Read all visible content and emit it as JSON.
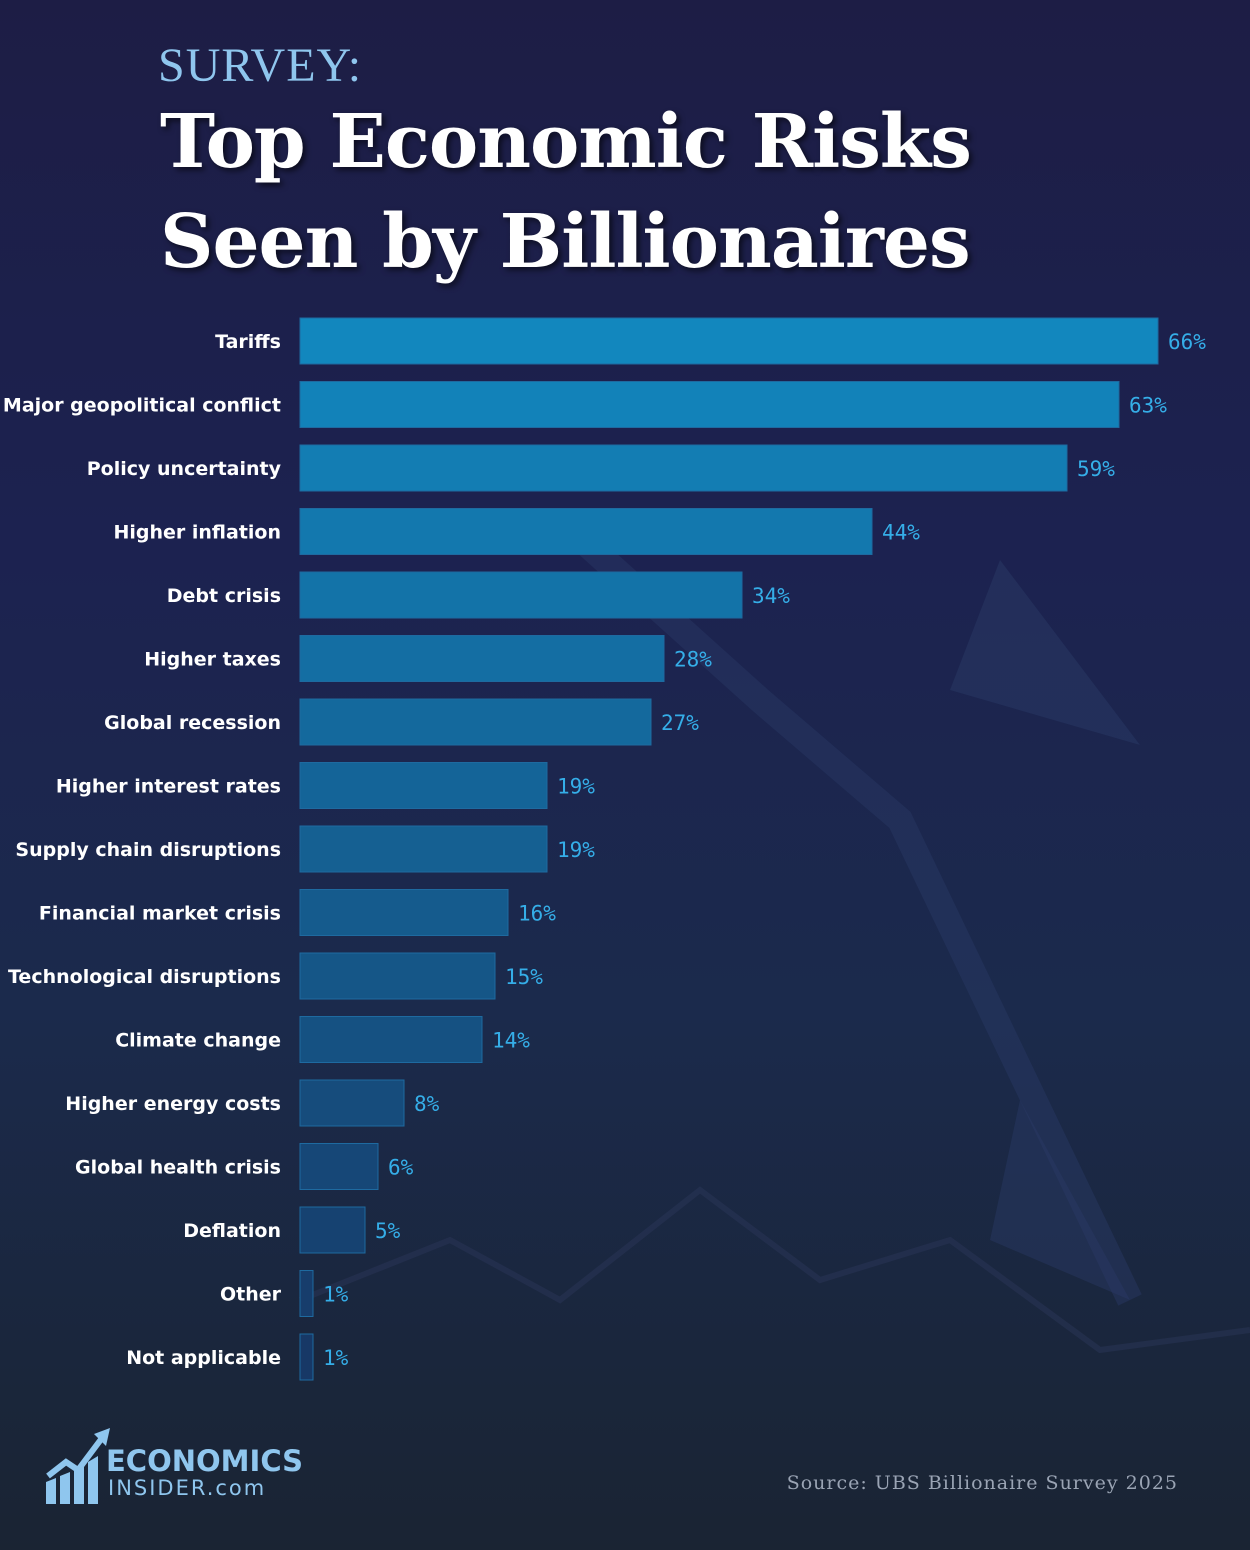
{
  "header": {
    "kicker": "SURVEY:",
    "title": "Top Economic Risks Seen by Billionaires"
  },
  "chart_data": {
    "type": "bar",
    "orientation": "horizontal",
    "categories": [
      "Tariffs",
      "Major geopolitical conflict",
      "Policy uncertainty",
      "Higher inflation",
      "Debt crisis",
      "Higher taxes",
      "Global recession",
      "Higher interest rates",
      "Supply chain disruptions",
      "Financial market crisis",
      "Technological disruptions",
      "Climate change",
      "Higher energy costs",
      "Global health crisis",
      "Deflation",
      "Other",
      "Not applicable"
    ],
    "values": [
      66,
      63,
      59,
      44,
      34,
      28,
      27,
      19,
      19,
      16,
      15,
      14,
      8,
      6,
      5,
      1,
      1
    ],
    "value_labels": [
      "66%",
      "63%",
      "59%",
      "44%",
      "34%",
      "28%",
      "27%",
      "19%",
      "19%",
      "16%",
      "15%",
      "14%",
      "8%",
      "6%",
      "5%",
      "1%",
      "1%"
    ],
    "unit": "%",
    "grid": false,
    "colors": {
      "top": "#1287be",
      "bottom": "#173866",
      "value_text": "#35aee8"
    }
  },
  "footer": {
    "logo_line1": "ECONOMICS",
    "logo_line2": "INSIDER.com",
    "source": "Source: UBS Billionaire Survey 2025"
  }
}
